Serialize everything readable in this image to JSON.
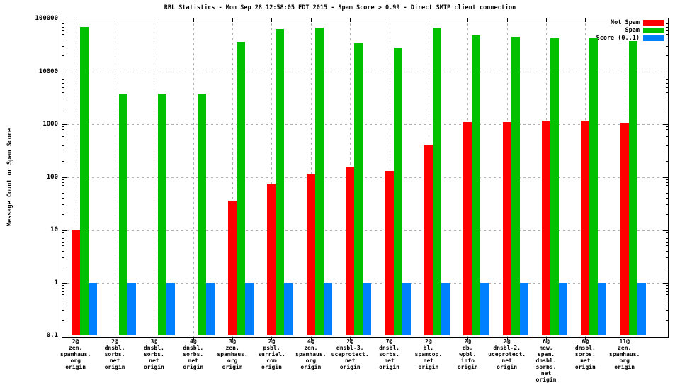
{
  "chart_data": {
    "type": "bar",
    "title": "RBL Statistics - Mon Sep 28 12:58:05 EDT 2015 - Spam Score > 0.99 - Direct SMTP client connection",
    "ylabel": "Message Count or Spam Score",
    "yscale": "log",
    "ylim": [
      0.1,
      100000
    ],
    "ytick_labels": [
      "0.1",
      "1",
      "10",
      "100",
      "1000",
      "10000",
      "100000"
    ],
    "grid": "dashed",
    "grid_color": "#b0b0b0",
    "legend_position": "top-right",
    "categories": [
      [
        "2@",
        "zen.",
        "spamhaus.",
        "org",
        "origin"
      ],
      [
        "2@",
        "dnsbl.",
        "sorbs.",
        "net",
        "origin"
      ],
      [
        "3@",
        "dnsbl.",
        "sorbs.",
        "net",
        "origin"
      ],
      [
        "4@",
        "dnsbl.",
        "sorbs.",
        "net",
        "origin"
      ],
      [
        "3@",
        "zen.",
        "spamhaus.",
        "org",
        "origin"
      ],
      [
        "2@",
        "psbl.",
        "surriel.",
        "com",
        "origin"
      ],
      [
        "4@",
        "zen.",
        "spamhaus.",
        "org",
        "origin"
      ],
      [
        "2@",
        "dnsbl-3.",
        "uceprotect.",
        "net",
        "origin"
      ],
      [
        "7@",
        "dnsbl.",
        "sorbs.",
        "net",
        "origin"
      ],
      [
        "2@",
        "bl.",
        "spamcop.",
        "net",
        "origin"
      ],
      [
        "2@",
        "db.",
        "wpbl.",
        "info",
        "origin"
      ],
      [
        "2@",
        "dnsbl-2.",
        "uceprotect.",
        "net",
        "origin"
      ],
      [
        "6@",
        "new.",
        "spam.",
        "dnsbl.",
        "sorbs.",
        "net",
        "origin"
      ],
      [
        "6@",
        "dnsbl.",
        "sorbs.",
        "net",
        "origin"
      ],
      [
        "11@",
        "zen.",
        "spamhaus.",
        "org",
        "origin"
      ]
    ],
    "series": [
      {
        "name": "Not Spam",
        "color": "#ff0000",
        "values": [
          10,
          null,
          null,
          null,
          35,
          75,
          110,
          155,
          130,
          410,
          1100,
          1100,
          1150,
          1150,
          1050
        ]
      },
      {
        "name": "Spam",
        "color": "#00c000",
        "values": [
          70000,
          3800,
          3800,
          3800,
          36000,
          62000,
          66000,
          34000,
          28000,
          66000,
          48000,
          45000,
          42000,
          42000,
          37000
        ]
      },
      {
        "name": "Score (0..1)",
        "color": "#0080ff",
        "values": [
          1,
          1,
          1,
          1,
          1,
          1,
          1,
          1,
          1,
          1,
          1,
          1,
          1,
          1,
          1
        ]
      }
    ]
  }
}
